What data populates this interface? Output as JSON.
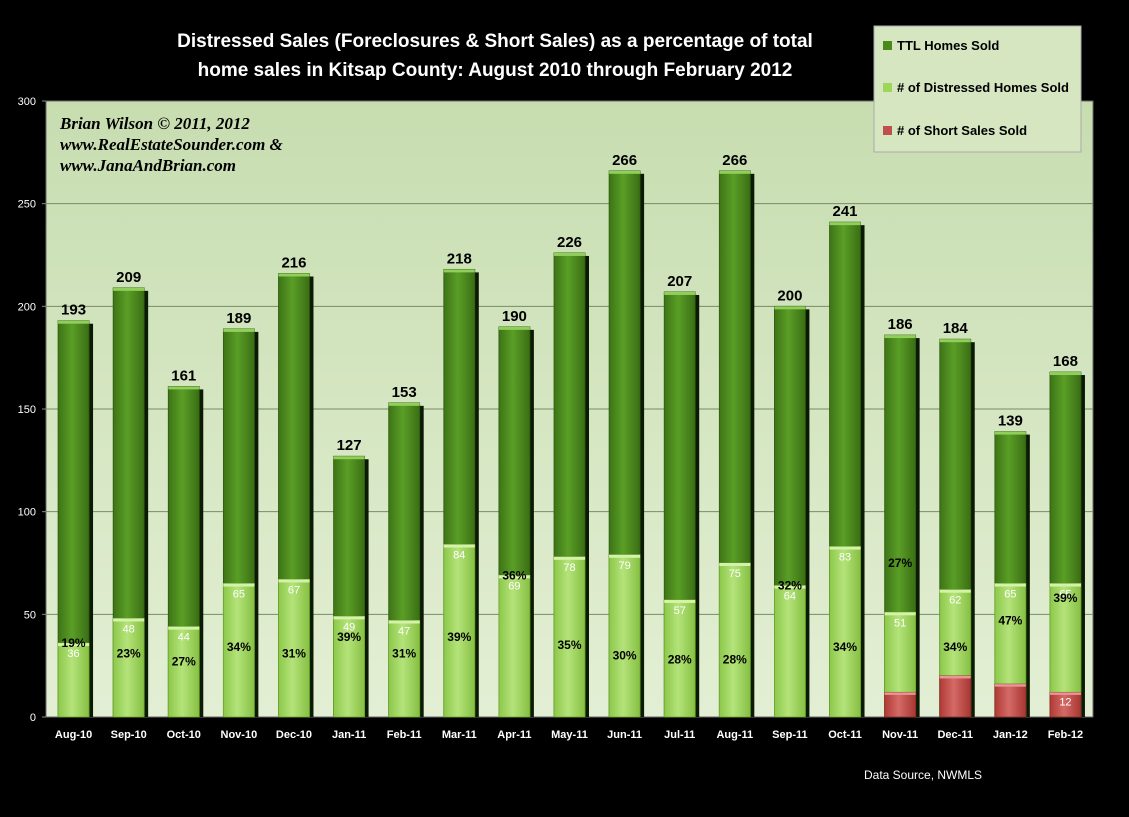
{
  "title_lines": [
    "Distressed Sales (Foreclosures & Short Sales) as a percentage of total",
    "home sales in Kitsap County:  August 2010 through February 2012"
  ],
  "watermark_lines": [
    "Brian Wilson © 2011, 2012",
    "www.RealEstateSounder.com &",
    "www.JanaAndBrian.com"
  ],
  "source": "Data Source, NWMLS",
  "colors": {
    "total": "#4a8a1c",
    "distressed": "#9ed65a",
    "short": "#c0504d",
    "plot_bg": "#cfe2b2"
  },
  "chart_data": {
    "type": "bar",
    "title": "Distressed Sales (Foreclosures & Short Sales) as a percentage of total home sales in Kitsap County:  August 2010 through February 2012",
    "categories": [
      "Aug-10",
      "Sep-10",
      "Oct-10",
      "Nov-10",
      "Dec-10",
      "Jan-11",
      "Feb-11",
      "Mar-11",
      "Apr-11",
      "May-11",
      "Jun-11",
      "Jul-11",
      "Aug-11",
      "Sep-11",
      "Oct-11",
      "Nov-11",
      "Dec-11",
      "Jan-12",
      "Feb-12"
    ],
    "ylim": [
      0,
      300
    ],
    "yticks": [
      0,
      50,
      100,
      150,
      200,
      250,
      300
    ],
    "grid": true,
    "legend_position": "top-right",
    "series": [
      {
        "name": "TTL Homes Sold",
        "values": [
          193,
          209,
          161,
          189,
          216,
          127,
          153,
          218,
          190,
          226,
          266,
          207,
          266,
          200,
          241,
          186,
          184,
          139,
          168
        ]
      },
      {
        "name": "# of Distressed Homes Sold",
        "values": [
          36,
          48,
          44,
          65,
          67,
          49,
          47,
          84,
          69,
          78,
          79,
          57,
          75,
          64,
          83,
          51,
          62,
          65,
          65
        ]
      },
      {
        "name": "# of Short Sales Sold",
        "values": [
          0,
          0,
          0,
          0,
          0,
          0,
          0,
          0,
          0,
          0,
          0,
          0,
          0,
          0,
          0,
          12,
          20,
          16,
          12
        ]
      }
    ],
    "total_labels": [
      "193",
      "209",
      "161",
      "189",
      "216",
      "127",
      "153",
      "218",
      "190",
      "226",
      "266",
      "207",
      "266",
      "200",
      "241",
      "186",
      "184",
      "139",
      "168"
    ],
    "distressed_labels": [
      "36",
      "48",
      "44",
      "65",
      "67",
      "49",
      "47",
      "84",
      "69",
      "78",
      "79",
      "57",
      "75",
      "64",
      "83",
      "51",
      "62",
      "65",
      "65"
    ],
    "short_labels": [
      "",
      "",
      "",
      "",
      "",
      "",
      "",
      "",
      "",
      "",
      "",
      "",
      "",
      "",
      "",
      "",
      "",
      "",
      "12"
    ],
    "pct_labels": [
      "19%",
      "23%",
      "27%",
      "34%",
      "31%",
      "39%",
      "31%",
      "39%",
      "36%",
      "35%",
      "30%",
      "28%",
      "28%",
      "32%",
      "34%",
      "27%",
      "34%",
      "47%",
      "39%"
    ],
    "pct_label_values": [
      36,
      31,
      27,
      34,
      31,
      39,
      31,
      39,
      69,
      35,
      30,
      28,
      28,
      64,
      34,
      75,
      34,
      47,
      58
    ]
  }
}
